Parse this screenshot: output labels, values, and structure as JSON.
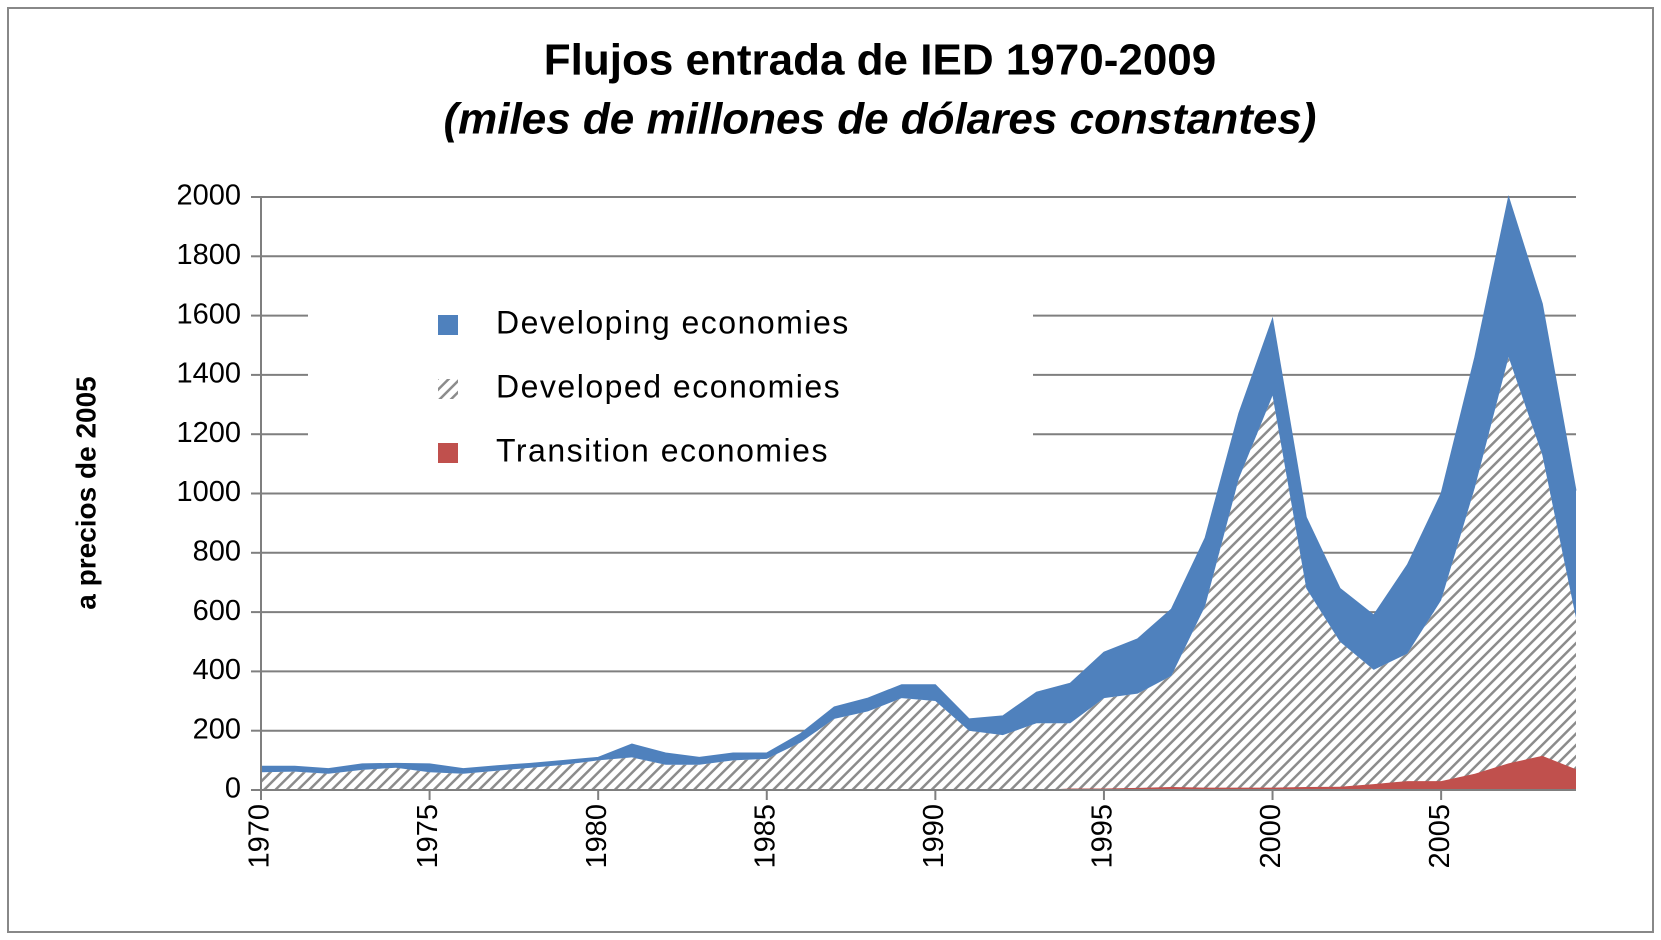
{
  "chart_data": {
    "type": "stacked-area",
    "title": "Flujos entrada de IED 1970-2009",
    "subtitle": "(miles de millones de dólares constantes)",
    "ylabel": "a precios de 2005",
    "x": [
      1970,
      1971,
      1972,
      1973,
      1974,
      1975,
      1976,
      1977,
      1978,
      1979,
      1980,
      1981,
      1982,
      1983,
      1984,
      1985,
      1986,
      1987,
      1988,
      1989,
      1990,
      1991,
      1992,
      1993,
      1994,
      1995,
      1996,
      1997,
      1998,
      1999,
      2000,
      2001,
      2002,
      2003,
      2004,
      2005,
      2006,
      2007,
      2008,
      2009
    ],
    "xlim": [
      1970,
      2009
    ],
    "xticks": [
      1970,
      1975,
      1980,
      1985,
      1990,
      1995,
      2000,
      2005
    ],
    "ylim": [
      0,
      2000
    ],
    "yticks": [
      0,
      200,
      400,
      600,
      800,
      1000,
      1200,
      1400,
      1600,
      1800,
      2000
    ],
    "grid": true,
    "legend": "upper left",
    "series": [
      {
        "name": "Transition economies",
        "color": "#c0504d",
        "fill": "solid",
        "values": [
          0,
          0,
          0,
          0,
          0,
          0,
          0,
          0,
          0,
          0,
          0,
          0,
          0,
          0,
          0,
          0,
          0,
          0,
          0,
          0,
          0,
          0,
          0,
          0,
          5,
          5,
          7,
          10,
          8,
          8,
          8,
          10,
          11,
          20,
          30,
          30,
          55,
          90,
          115,
          70
        ]
      },
      {
        "name": "Developed economies",
        "color": "#8c8c8c",
        "fill": "hatch",
        "values": [
          60,
          62,
          55,
          68,
          75,
          60,
          55,
          65,
          75,
          85,
          100,
          110,
          85,
          85,
          100,
          105,
          160,
          240,
          265,
          310,
          300,
          200,
          185,
          225,
          220,
          305,
          318,
          375,
          612,
          1042,
          1322,
          670,
          489,
          385,
          430,
          610,
          965,
          1370,
          1015,
          510
        ]
      },
      {
        "name": "Developing economies",
        "color": "#4f81bd",
        "fill": "solid",
        "values": [
          20,
          18,
          17,
          20,
          15,
          28,
          17,
          17,
          15,
          15,
          10,
          45,
          40,
          25,
          25,
          20,
          30,
          40,
          45,
          45,
          55,
          40,
          65,
          105,
          135,
          155,
          185,
          225,
          230,
          220,
          260,
          240,
          180,
          185,
          300,
          360,
          440,
          540,
          510,
          430
        ]
      }
    ]
  }
}
